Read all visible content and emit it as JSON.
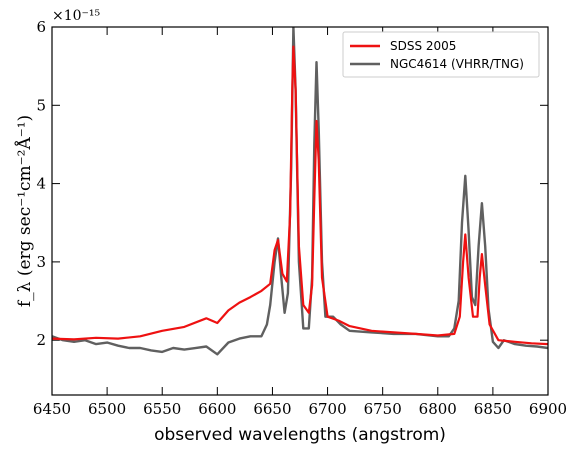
{
  "chart_data": {
    "type": "line",
    "xlabel": "observed wavelengths (angstrom)",
    "ylabel": "f_λ (erg sec⁻¹cm⁻²Å⁻¹)",
    "y_scale_label": "×10⁻¹⁵",
    "xlim": [
      6450,
      6900
    ],
    "ylim": [
      1.3,
      6.0
    ],
    "x_ticks": [
      6450,
      6500,
      6550,
      6600,
      6650,
      6700,
      6750,
      6800,
      6850,
      6900
    ],
    "y_ticks": [
      2,
      3,
      4,
      5,
      6
    ],
    "legend_position": "top-right",
    "series": [
      {
        "name": "SDSS 2005",
        "color": "#ee1111",
        "points": [
          [
            6450,
            2.02
          ],
          [
            6470,
            2.01
          ],
          [
            6490,
            2.03
          ],
          [
            6510,
            2.02
          ],
          [
            6530,
            2.05
          ],
          [
            6550,
            2.12
          ],
          [
            6570,
            2.17
          ],
          [
            6590,
            2.28
          ],
          [
            6600,
            2.22
          ],
          [
            6610,
            2.38
          ],
          [
            6620,
            2.48
          ],
          [
            6630,
            2.55
          ],
          [
            6640,
            2.63
          ],
          [
            6648,
            2.72
          ],
          [
            6652,
            3.15
          ],
          [
            6655,
            3.28
          ],
          [
            6659,
            2.85
          ],
          [
            6663,
            2.75
          ],
          [
            6666,
            3.6
          ],
          [
            6668,
            5.2
          ],
          [
            6669,
            5.75
          ],
          [
            6671,
            5.2
          ],
          [
            6674,
            3.2
          ],
          [
            6678,
            2.45
          ],
          [
            6683,
            2.35
          ],
          [
            6686,
            2.7
          ],
          [
            6688,
            3.8
          ],
          [
            6690,
            4.8
          ],
          [
            6692,
            4.3
          ],
          [
            6695,
            2.8
          ],
          [
            6700,
            2.3
          ],
          [
            6710,
            2.25
          ],
          [
            6720,
            2.18
          ],
          [
            6740,
            2.12
          ],
          [
            6760,
            2.1
          ],
          [
            6780,
            2.08
          ],
          [
            6800,
            2.06
          ],
          [
            6815,
            2.08
          ],
          [
            6820,
            2.3
          ],
          [
            6823,
            3.0
          ],
          [
            6825,
            3.35
          ],
          [
            6828,
            2.8
          ],
          [
            6832,
            2.3
          ],
          [
            6836,
            2.3
          ],
          [
            6838,
            2.8
          ],
          [
            6840,
            3.1
          ],
          [
            6843,
            2.7
          ],
          [
            6847,
            2.2
          ],
          [
            6855,
            2.0
          ],
          [
            6870,
            1.98
          ],
          [
            6885,
            1.96
          ],
          [
            6900,
            1.95
          ]
        ]
      },
      {
        "name": "NGC4614 (VHRR/TNG)",
        "color": "#606060",
        "points": [
          [
            6450,
            2.05
          ],
          [
            6460,
            2.0
          ],
          [
            6470,
            1.98
          ],
          [
            6480,
            2.0
          ],
          [
            6490,
            1.95
          ],
          [
            6500,
            1.97
          ],
          [
            6510,
            1.93
          ],
          [
            6520,
            1.9
          ],
          [
            6530,
            1.9
          ],
          [
            6540,
            1.87
          ],
          [
            6550,
            1.85
          ],
          [
            6560,
            1.9
          ],
          [
            6570,
            1.88
          ],
          [
            6580,
            1.9
          ],
          [
            6590,
            1.92
          ],
          [
            6600,
            1.82
          ],
          [
            6610,
            1.97
          ],
          [
            6620,
            2.02
          ],
          [
            6630,
            2.05
          ],
          [
            6640,
            2.05
          ],
          [
            6645,
            2.2
          ],
          [
            6648,
            2.45
          ],
          [
            6652,
            3.0
          ],
          [
            6655,
            3.3
          ],
          [
            6658,
            2.8
          ],
          [
            6661,
            2.35
          ],
          [
            6664,
            2.6
          ],
          [
            6667,
            4.2
          ],
          [
            6669,
            6.0
          ],
          [
            6671,
            5.2
          ],
          [
            6674,
            3.0
          ],
          [
            6678,
            2.15
          ],
          [
            6683,
            2.15
          ],
          [
            6686,
            2.8
          ],
          [
            6688,
            4.5
          ],
          [
            6690,
            5.55
          ],
          [
            6692,
            4.7
          ],
          [
            6695,
            3.0
          ],
          [
            6698,
            2.3
          ],
          [
            6705,
            2.3
          ],
          [
            6712,
            2.2
          ],
          [
            6720,
            2.12
          ],
          [
            6740,
            2.1
          ],
          [
            6760,
            2.08
          ],
          [
            6780,
            2.08
          ],
          [
            6800,
            2.05
          ],
          [
            6810,
            2.05
          ],
          [
            6815,
            2.15
          ],
          [
            6819,
            2.5
          ],
          [
            6822,
            3.5
          ],
          [
            6825,
            4.1
          ],
          [
            6828,
            3.4
          ],
          [
            6831,
            2.55
          ],
          [
            6834,
            2.45
          ],
          [
            6837,
            3.2
          ],
          [
            6840,
            3.75
          ],
          [
            6843,
            3.2
          ],
          [
            6846,
            2.4
          ],
          [
            6850,
            1.98
          ],
          [
            6855,
            1.9
          ],
          [
            6860,
            2.0
          ],
          [
            6870,
            1.95
          ],
          [
            6880,
            1.93
          ],
          [
            6890,
            1.92
          ],
          [
            6900,
            1.9
          ]
        ]
      }
    ]
  }
}
